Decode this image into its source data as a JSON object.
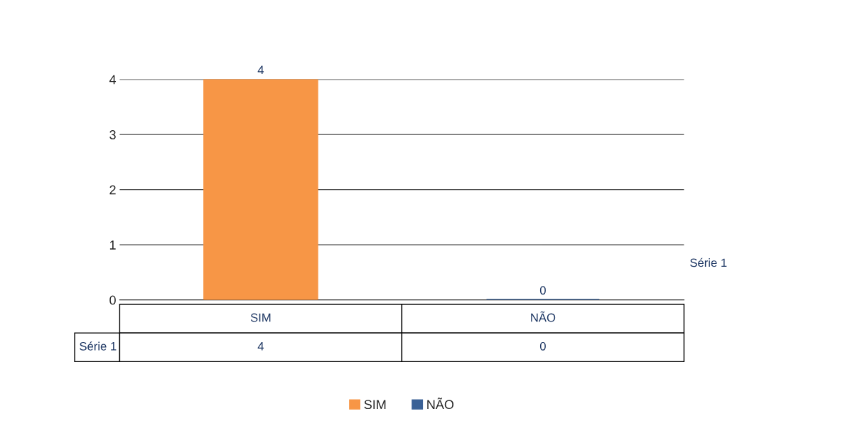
{
  "chart_data": {
    "type": "bar",
    "categories": [
      "SIM",
      "NÃO"
    ],
    "series": [
      {
        "name": "Série 1",
        "colors": [
          "#f79646",
          "#3a6196"
        ],
        "values": [
          4,
          0
        ],
        "value_labels": [
          "4",
          "0"
        ]
      }
    ],
    "ylim": [
      0,
      4
    ],
    "yticks": [
      0,
      1,
      2,
      3,
      4
    ],
    "grid": "y",
    "data_labels": true,
    "legend": "bottom"
  }
}
